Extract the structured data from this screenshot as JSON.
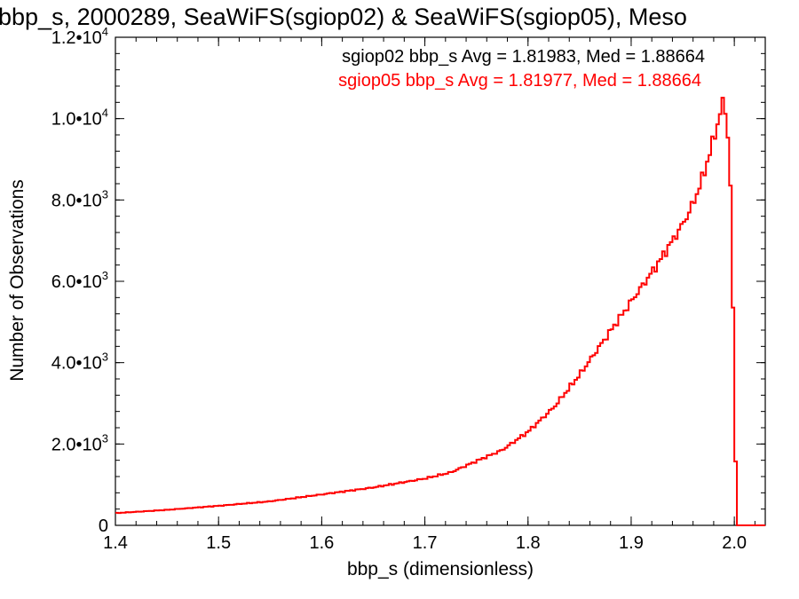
{
  "chart_data": {
    "type": "line",
    "title": "bbp_s, 2000289, SeaWiFS(sgiop02) & SeaWiFS(sgiop05), Meso",
    "xlabel": "bbp_s (dimensionless)",
    "ylabel": "Number of Observations",
    "xlim": [
      1.4,
      2.03
    ],
    "ylim": [
      0,
      12000
    ],
    "x_ticks": [
      1.4,
      1.5,
      1.6,
      1.7,
      1.8,
      1.9,
      2.0
    ],
    "x_tick_labels": [
      "1.4",
      "1.5",
      "1.6",
      "1.7",
      "1.8",
      "1.9",
      "2.0"
    ],
    "y_ticks": [
      0,
      2000,
      4000,
      6000,
      8000,
      10000,
      12000
    ],
    "y_tick_labels": [
      {
        "mantissa": "0",
        "exp": ""
      },
      {
        "mantissa": "2.0•10",
        "exp": "3"
      },
      {
        "mantissa": "4.0•10",
        "exp": "3"
      },
      {
        "mantissa": "6.0•10",
        "exp": "3"
      },
      {
        "mantissa": "8.0•10",
        "exp": "3"
      },
      {
        "mantissa": "1.0•10",
        "exp": "4"
      },
      {
        "mantissa": "1.2•10",
        "exp": "4"
      }
    ],
    "grid": false,
    "legend_position": "top-right",
    "annotations": [
      {
        "text": "sgiop02 bbp_s Avg = 1.81983, Med = 1.88664",
        "color": "#000000"
      },
      {
        "text": "sgiop05 bbp_s Avg = 1.81977, Med = 1.88664",
        "color": "#ff0000"
      }
    ],
    "series": [
      {
        "color": "#ff0000",
        "style": "step",
        "x": [
          1.4,
          1.45,
          1.5,
          1.55,
          1.6,
          1.65,
          1.7,
          1.725,
          1.75,
          1.775,
          1.8,
          1.825,
          1.85,
          1.875,
          1.9,
          1.925,
          1.95,
          1.96,
          1.97,
          1.98,
          1.99,
          1.995,
          1.998,
          2.0,
          2.003,
          2.006,
          2.03
        ],
        "y": [
          300,
          380,
          480,
          590,
          760,
          930,
          1150,
          1300,
          1580,
          1850,
          2300,
          2900,
          3700,
          4600,
          5500,
          6400,
          7400,
          7900,
          8600,
          9500,
          10500,
          9300,
          6900,
          2700,
          0,
          0,
          0
        ]
      }
    ]
  }
}
